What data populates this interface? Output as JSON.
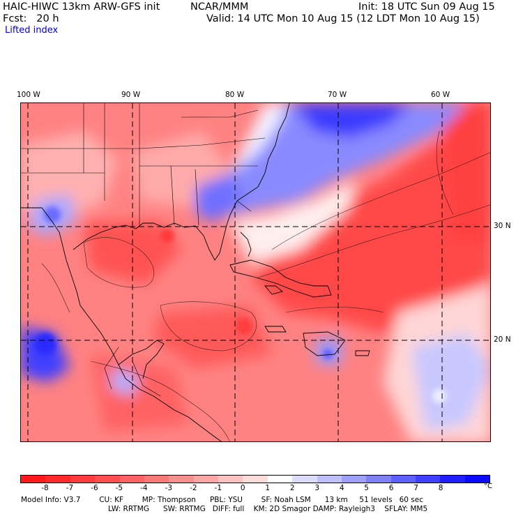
{
  "header": {
    "model_title": "HAIC-HIWC 13km ARW-GFS init",
    "org": "NCAR/MMM",
    "init": "Init: 18 UTC Sun 09 Aug 15",
    "fcst": "Fcst:   20 h",
    "valid": "Valid: 14 UTC Mon 10 Aug 15 (12 LDT Mon 10 Aug 15)",
    "field": "Lifted index"
  },
  "map": {
    "lon_labels": [
      "100 W",
      "90 W",
      "80 W",
      "70 W",
      "60 W"
    ],
    "lat_labels": [
      "30 N",
      "20 N"
    ],
    "gridline_style": "dashed"
  },
  "colorbar": {
    "unit": "°C",
    "ticks": [
      "-8",
      "-7",
      "-6",
      "-5",
      "-4",
      "-3",
      "-2",
      "-1",
      "0",
      "1",
      "2",
      "3",
      "4",
      "5",
      "6",
      "7",
      "8"
    ],
    "colors": [
      "#ff1a1a",
      "#ff2a2a",
      "#ff3d3d",
      "#ff5050",
      "#ff6464",
      "#ff7878",
      "#ff8e8e",
      "#ffa6a6",
      "#ffc2c2",
      "#ffdcdc",
      "#ffffff",
      "#dcdcff",
      "#c0c0ff",
      "#a0a0ff",
      "#8080ff",
      "#6060ff",
      "#4040ff",
      "#2020ff",
      "#0a0aff"
    ]
  },
  "model_info": {
    "line1": "Model Info: V3.7        CU: KF        MP: Thompson      PBL: YSU        SF: Noah LSM      13 km     51 levels   60 sec",
    "line2": "LW: RRTMG      SW: RRTMG   DIFF: full    KM: 2D Smagor DAMP: Rayleigh3    SFLAY: MM5"
  }
}
